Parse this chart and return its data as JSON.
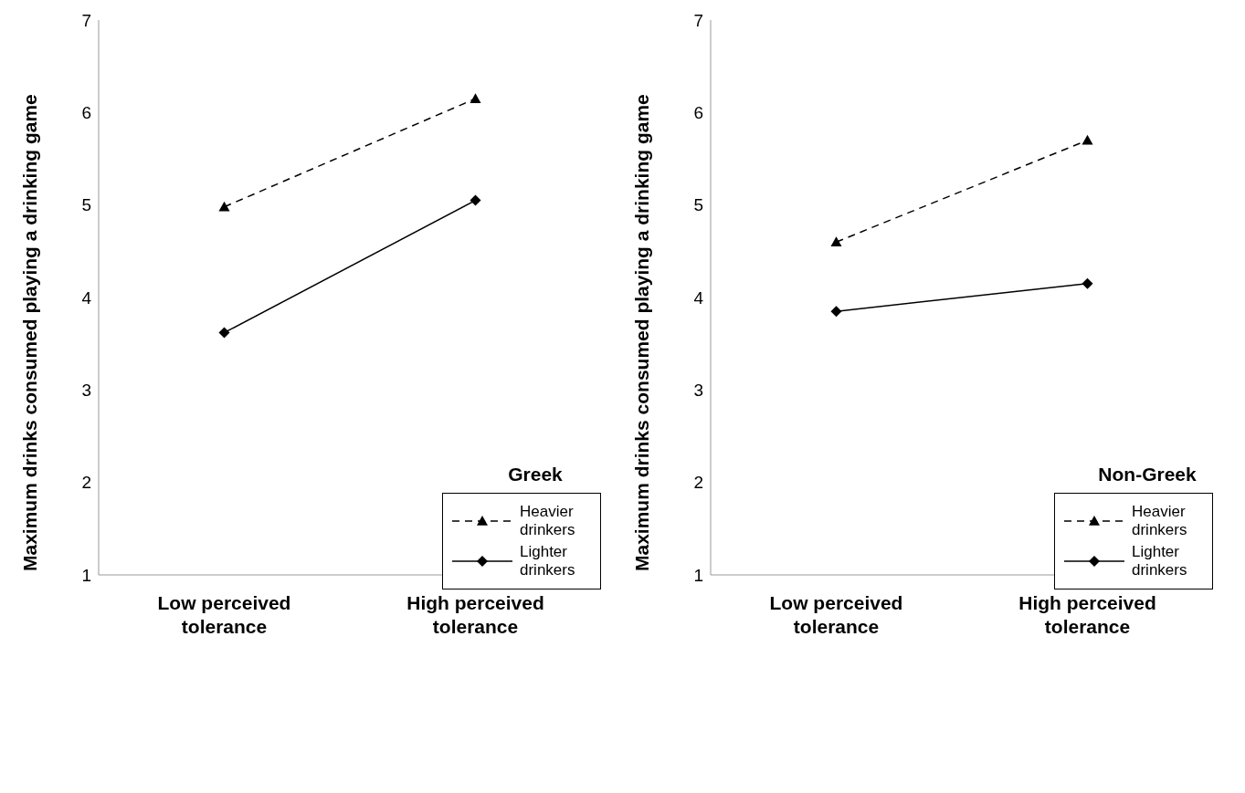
{
  "chart_data": [
    {
      "type": "line",
      "ylabel": "Maximum drinks consumed playing a drinking game",
      "legend_title": "Greek",
      "categories": [
        "Low perceived tolerance",
        "High perceived tolerance"
      ],
      "series": [
        {
          "name": "Heavier drinkers",
          "color": "#000000",
          "values": [
            4.98,
            6.15
          ],
          "marker": "triangle",
          "line_style": "dashed"
        },
        {
          "name": "Lighter drinkers",
          "color": "#000000",
          "values": [
            3.62,
            5.05
          ],
          "marker": "diamond",
          "line_style": "solid"
        }
      ],
      "ylim": [
        1,
        7
      ],
      "yticks": [
        1,
        2,
        3,
        4,
        5,
        6,
        7
      ],
      "grid": false,
      "legend": "bottom right"
    },
    {
      "type": "line",
      "ylabel": "Maximum drinks consumed playing a drinking game",
      "legend_title": "Non-Greek",
      "categories": [
        "Low perceived tolerance",
        "High perceived tolerance"
      ],
      "series": [
        {
          "name": "Heavier drinkers",
          "color": "#000000",
          "values": [
            4.6,
            5.7
          ],
          "marker": "triangle",
          "line_style": "dashed"
        },
        {
          "name": "Lighter drinkers",
          "color": "#000000",
          "values": [
            3.85,
            4.15
          ],
          "marker": "diamond",
          "line_style": "solid"
        }
      ],
      "ylim": [
        1,
        7
      ],
      "yticks": [
        1,
        2,
        3,
        4,
        5,
        6,
        7
      ],
      "grid": false,
      "legend": "bottom right"
    }
  ]
}
